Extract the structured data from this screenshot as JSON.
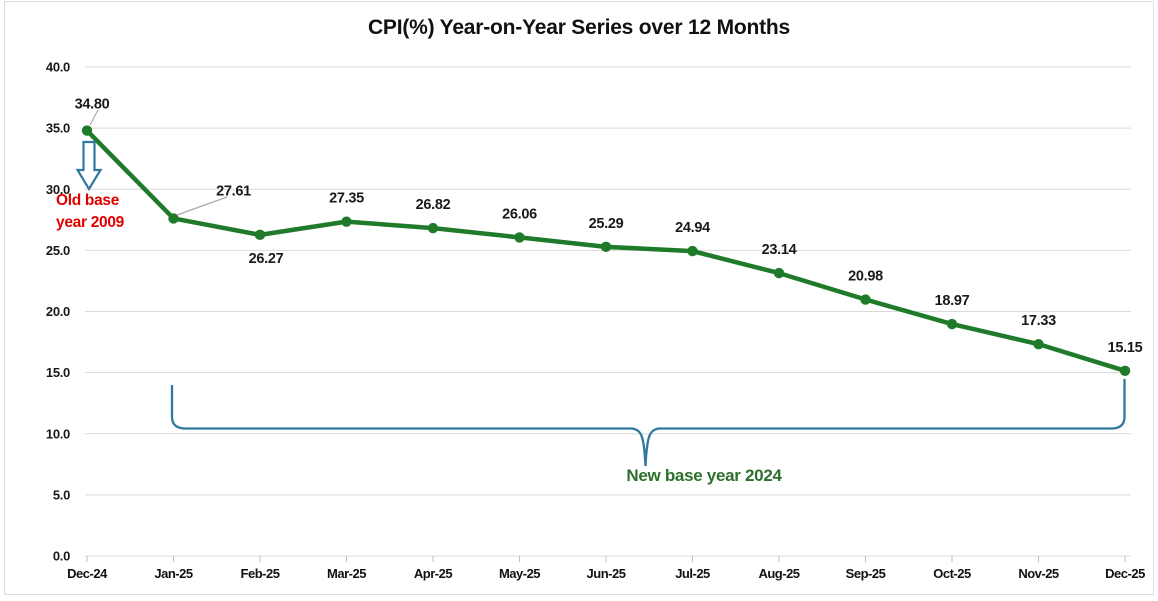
{
  "chart_data": {
    "type": "line",
    "title": "CPI(%) Year-on-Year Series over 12 Months",
    "xlabel": "",
    "ylabel": "",
    "categories": [
      "Dec-24",
      "Jan-25",
      "Feb-25",
      "Mar-25",
      "Apr-25",
      "May-25",
      "Jun-25",
      "Jul-25",
      "Aug-25",
      "Sep-25",
      "Oct-25",
      "Nov-25",
      "Dec-25"
    ],
    "series": [
      {
        "color": "#1f7b2a",
        "values": [
          34.8,
          27.61,
          26.27,
          27.35,
          26.82,
          26.06,
          25.29,
          24.94,
          23.14,
          20.98,
          18.97,
          17.33,
          15.15
        ],
        "labels": [
          "34.80",
          "27.61",
          "26.27",
          "27.35",
          "26.82",
          "26.06",
          "25.29",
          "24.94",
          "23.14",
          "20.98",
          "18.97",
          "17.33",
          "15.15"
        ]
      }
    ],
    "ylim": [
      0,
      40
    ],
    "ytick_step": 5,
    "ytick_labels": [
      "0.0",
      "5.0",
      "10.0",
      "15.0",
      "20.0",
      "25.0",
      "30.0",
      "35.0",
      "40.0"
    ],
    "grid": true,
    "legend_position": "none",
    "colors": {
      "grid": "#d9d9d9",
      "axis": "#c6c6c6",
      "tick": "#bfbfbf",
      "leader": "#a9a9a9",
      "label_text": "#1a1a1a"
    },
    "annotations": {
      "old_base": {
        "line1": "Old base",
        "line2": "year 2009",
        "color": "#e00000",
        "arrow_icon": "hollow-down-arrow",
        "arrow_color": "#31789e"
      },
      "new_base": {
        "text": "New base year 2024",
        "color": "#2d6f2d",
        "brace_color": "#31789e",
        "brace_span": [
          "Jan-25",
          "Dec-25"
        ]
      }
    }
  }
}
